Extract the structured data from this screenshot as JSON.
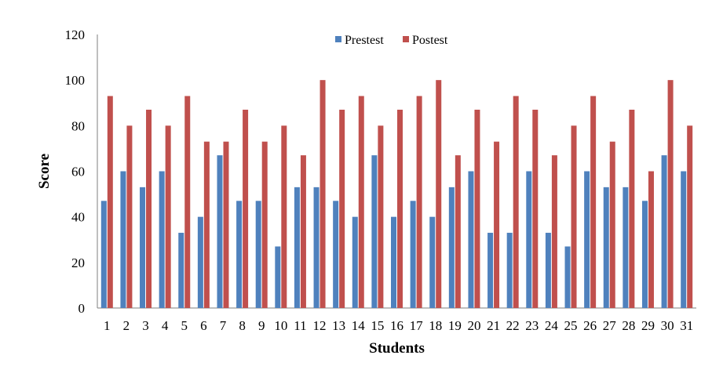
{
  "chart_data": {
    "type": "bar",
    "title": "",
    "xlabel": "Students",
    "ylabel": "Score",
    "ylim": [
      0,
      120
    ],
    "yticks": [
      0,
      20,
      40,
      60,
      80,
      100,
      120
    ],
    "grid": false,
    "legend_position": "top-center",
    "categories": [
      "1",
      "2",
      "3",
      "4",
      "5",
      "6",
      "7",
      "8",
      "9",
      "10",
      "11",
      "12",
      "13",
      "14",
      "15",
      "16",
      "17",
      "18",
      "19",
      "20",
      "21",
      "22",
      "23",
      "24",
      "25",
      "26",
      "27",
      "28",
      "29",
      "30",
      "31"
    ],
    "series": [
      {
        "name": "Prestest",
        "color": "#4F81BD",
        "values": [
          47,
          60,
          53,
          60,
          33,
          40,
          67,
          47,
          47,
          27,
          53,
          53,
          47,
          40,
          67,
          40,
          47,
          40,
          53,
          60,
          33,
          33,
          60,
          33,
          27,
          60,
          53,
          53,
          47,
          67,
          60
        ]
      },
      {
        "name": "Postest",
        "color": "#C0504D",
        "values": [
          93,
          80,
          87,
          80,
          93,
          73,
          73,
          87,
          73,
          80,
          67,
          100,
          87,
          93,
          80,
          87,
          93,
          100,
          67,
          87,
          73,
          93,
          87,
          67,
          80,
          93,
          73,
          87,
          60,
          100,
          80
        ]
      }
    ]
  }
}
